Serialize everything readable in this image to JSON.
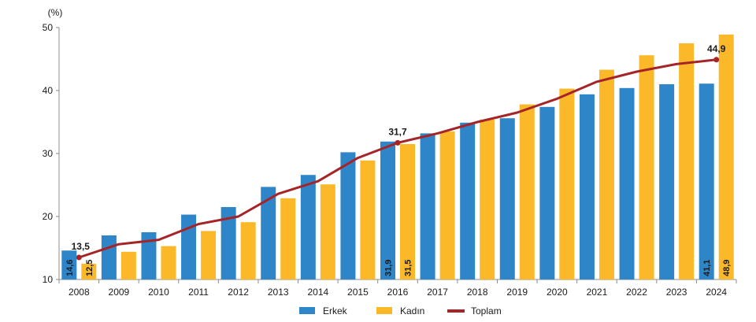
{
  "chart_data": {
    "type": "bar",
    "unit_label": "(%)",
    "categories": [
      "2008",
      "2009",
      "2010",
      "2011",
      "2012",
      "2013",
      "2014",
      "2015",
      "2016",
      "2017",
      "2018",
      "2019",
      "2020",
      "2021",
      "2022",
      "2023",
      "2024"
    ],
    "series": [
      {
        "name": "Erkek",
        "type": "bar",
        "color": "#2e86c8",
        "values": [
          14.6,
          17.0,
          17.5,
          20.3,
          21.5,
          24.7,
          26.6,
          30.2,
          31.9,
          33.2,
          34.9,
          35.6,
          37.4,
          39.4,
          40.4,
          41.0,
          41.1
        ]
      },
      {
        "name": "Kadın",
        "type": "bar",
        "color": "#fbb829",
        "values": [
          12.5,
          14.4,
          15.3,
          17.7,
          19.1,
          22.9,
          25.1,
          28.9,
          31.5,
          33.5,
          35.4,
          37.8,
          40.3,
          43.3,
          45.6,
          47.5,
          48.9
        ]
      },
      {
        "name": "Toplam",
        "type": "line",
        "color": "#a52428",
        "values": [
          13.5,
          15.6,
          16.3,
          18.8,
          20.0,
          23.6,
          25.6,
          29.3,
          31.7,
          33.2,
          35.0,
          36.5,
          38.7,
          41.4,
          43.0,
          44.2,
          44.9
        ]
      }
    ],
    "annotations": [
      {
        "series": "Toplam",
        "category": "2008",
        "text": "13,5"
      },
      {
        "series": "Toplam",
        "category": "2016",
        "text": "31,7"
      },
      {
        "series": "Toplam",
        "category": "2024",
        "text": "44,9"
      }
    ],
    "bar_value_labels": [
      {
        "series": "Erkek",
        "category": "2008",
        "text": "14,6"
      },
      {
        "series": "Kadın",
        "category": "2008",
        "text": "12,5"
      },
      {
        "series": "Erkek",
        "category": "2016",
        "text": "31,9"
      },
      {
        "series": "Kadın",
        "category": "2016",
        "text": "31,5"
      },
      {
        "series": "Erkek",
        "category": "2024",
        "text": "41,1"
      },
      {
        "series": "Kadın",
        "category": "2024",
        "text": "48,9"
      }
    ],
    "yticks": [
      "10",
      "20",
      "30",
      "40",
      "50"
    ],
    "ylim": [
      10,
      50
    ],
    "grid": false,
    "legend": "bottom"
  }
}
